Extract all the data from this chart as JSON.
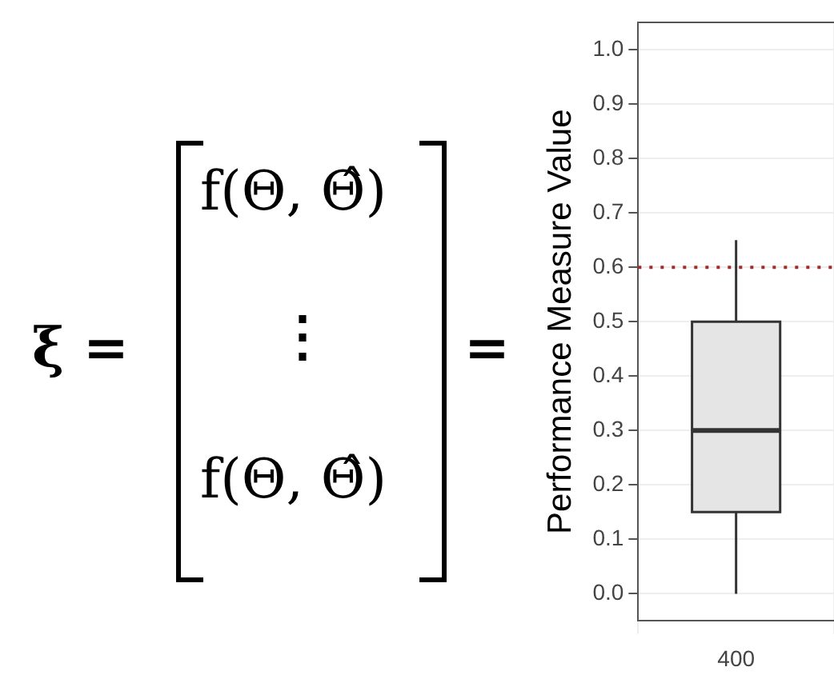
{
  "chart_data": {
    "type": "box",
    "ylabel": "Performance Measure Value",
    "categories": [
      "400"
    ],
    "boxes": [
      {
        "low": 0,
        "q1": 0.15,
        "median": 0.3,
        "q3": 0.5,
        "high": 0.65
      }
    ],
    "color": "#e5e5e5",
    "ylim": [
      -0.05,
      1.05
    ],
    "yticks": [
      {
        "value": 0,
        "label": "0.0"
      },
      0.1,
      0.2,
      0.3,
      0.4,
      0.5,
      0.6,
      0.7,
      0.8,
      0.9,
      {
        "value": 1,
        "label": "1.0"
      }
    ],
    "grid": true,
    "ref_lines": [
      {
        "axis": "y",
        "value": 0.6,
        "color": "#a52a2a",
        "line_style": "dotted"
      }
    ],
    "annotations": [
      "ξ =",
      "f(Θ, Θ̂)",
      "⋮",
      "f(Θ, Θ̂)",
      "="
    ]
  }
}
